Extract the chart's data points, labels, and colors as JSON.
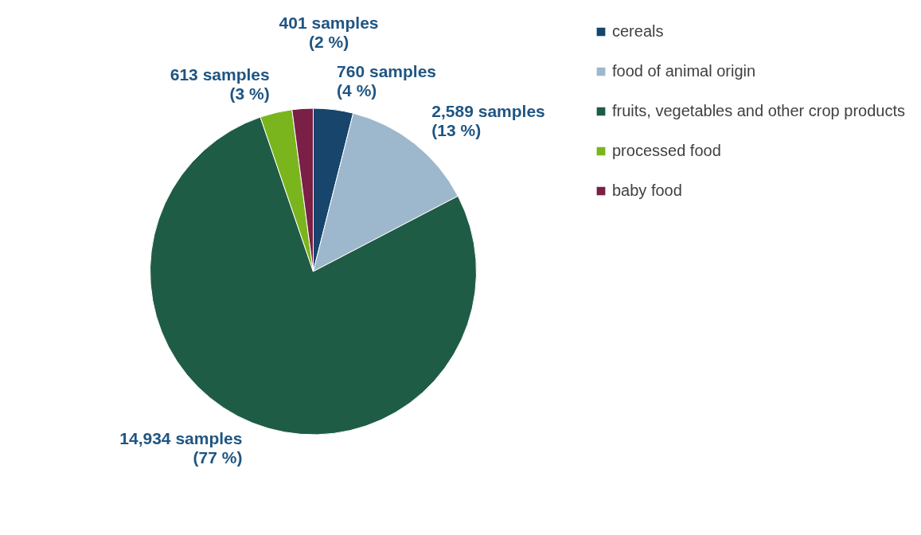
{
  "chart_data": {
    "type": "pie",
    "categories": [
      "cereals",
      "food of animal origin",
      "fruits, vegetables and other crop products",
      "processed food",
      "baby food"
    ],
    "values": [
      760,
      2589,
      14934,
      613,
      401
    ],
    "colors": [
      "#17456b",
      "#9db8cc",
      "#1f5c45",
      "#7ab51d",
      "#7a1f45"
    ],
    "value_labels": [
      "760 samples (4 %)",
      "2,589 samples (13 %)",
      "14,934 samples (77 %)",
      "613 samples (3 %)",
      "401 samples (2 %)"
    ],
    "legend": "right"
  }
}
